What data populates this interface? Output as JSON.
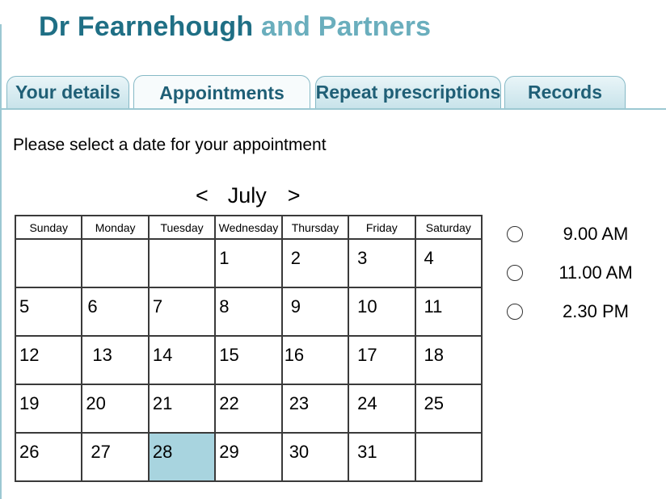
{
  "header": {
    "title_part1": "Dr Fearnehough",
    "title_part2": "and Partners"
  },
  "tabs": [
    {
      "label": "Your details"
    },
    {
      "label": "Appointments",
      "active": true
    },
    {
      "label": "Repeat prescriptions"
    },
    {
      "label": "Records"
    }
  ],
  "prompt": "Please select a date for your appointment",
  "calendar": {
    "prev_arrow": "<",
    "month": "July",
    "next_arrow": ">",
    "weekdays": [
      "Sunday",
      "Monday",
      "Tuesday",
      "Wednesday",
      "Thursday",
      "Friday",
      "Saturday"
    ],
    "weeks": [
      [
        "",
        "",
        "",
        "1",
        "2",
        "3",
        "4"
      ],
      [
        "5",
        "6",
        "7",
        "8",
        "9",
        "10",
        "11"
      ],
      [
        "12",
        "13",
        "14",
        "15",
        "16",
        "17",
        "18"
      ],
      [
        "19",
        "20",
        "21",
        "22",
        "23",
        "24",
        "25"
      ],
      [
        "26",
        "27",
        "28",
        "29",
        "30",
        "31",
        ""
      ]
    ],
    "selected_day": "28",
    "selected_color": "#a8d4df"
  },
  "time_slots": [
    {
      "label": "9.00 AM"
    },
    {
      "label": "11.00 AM"
    },
    {
      "label": "2.30 PM"
    }
  ],
  "colors": {
    "title_primary": "#1f6f85",
    "title_secondary": "#6aaebd",
    "tab_text": "#1f5f76",
    "tab_border": "#86b9c6"
  }
}
